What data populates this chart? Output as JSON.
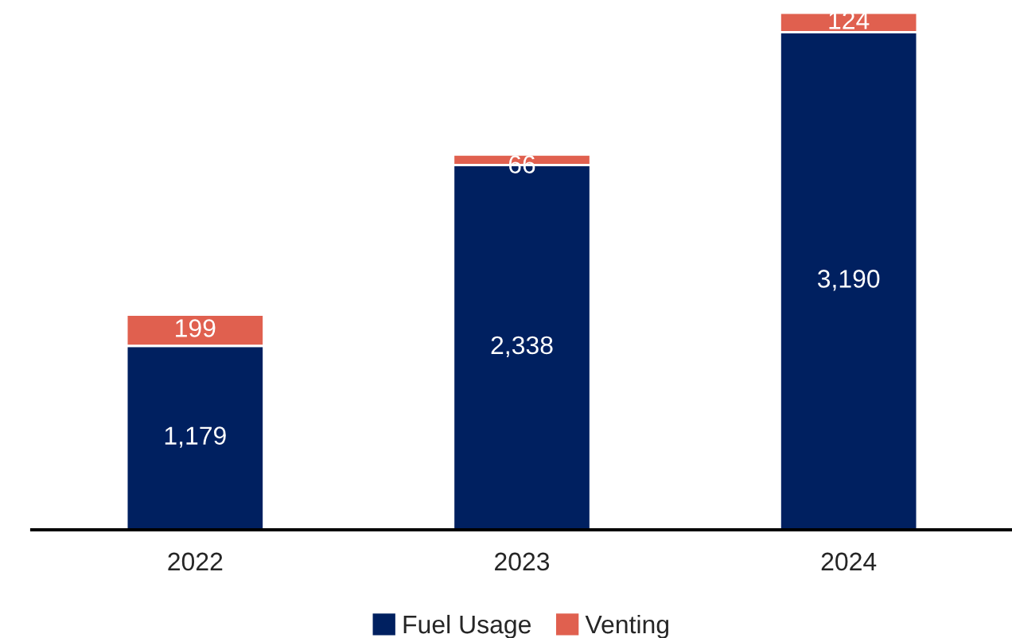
{
  "chart_data": {
    "type": "bar",
    "stacked": true,
    "categories": [
      "2022",
      "2023",
      "2024"
    ],
    "series": [
      {
        "name": "Fuel Usage",
        "color": "#002060",
        "values": [
          1179,
          2338,
          3190
        ],
        "value_labels": [
          "1,179",
          "2,338",
          "3,190"
        ]
      },
      {
        "name": "Venting",
        "color": "#e0604f",
        "values": [
          199,
          66,
          124
        ],
        "value_labels": [
          "199",
          "66",
          "124"
        ]
      }
    ],
    "tick_labels": "x",
    "grid": false,
    "legend": "bottom"
  }
}
